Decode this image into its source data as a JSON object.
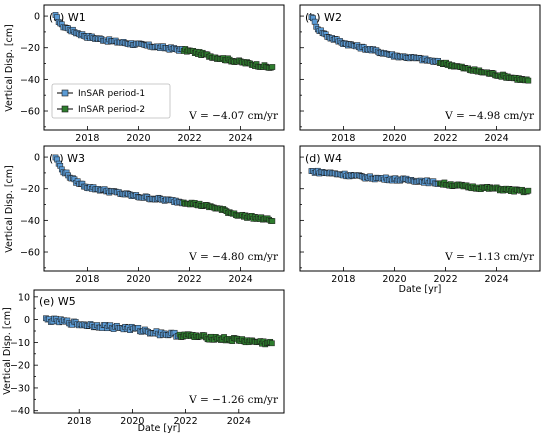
{
  "colors": {
    "period1": "#5b9bd5",
    "period2": "#2e7d2e",
    "line": "#000000",
    "point_edge": "#1a1a1a"
  },
  "legend": [
    {
      "label": "InSAR period-1",
      "series": "period1"
    },
    {
      "label": "InSAR period-2",
      "series": "period2"
    }
  ],
  "chart_data": [
    {
      "panel": "W1",
      "title": "(a) W1",
      "type": "scatter",
      "xlim": [
        2016.3,
        2025.7
      ],
      "ylim": [
        -72,
        7
      ],
      "xticks": [
        "2018",
        "2020",
        "2022",
        "2024"
      ],
      "yticks": [
        "0",
        "−20",
        "−40",
        "−60"
      ],
      "ylabel": "Vertical Disp. [cm]",
      "xlabel": "",
      "rate_text": "V = −4.07 cm/yr",
      "split_year": 2021.75,
      "keypoints": [
        [
          2016.75,
          0
        ],
        [
          2017.0,
          -6
        ],
        [
          2017.5,
          -10
        ],
        [
          2018.0,
          -13
        ],
        [
          2019.0,
          -16
        ],
        [
          2020.0,
          -18
        ],
        [
          2021.0,
          -20
        ],
        [
          2022.0,
          -22
        ],
        [
          2023.0,
          -26
        ],
        [
          2024.0,
          -29
        ],
        [
          2025.3,
          -33
        ]
      ],
      "legend": true
    },
    {
      "panel": "W2",
      "title": "(b) W2",
      "type": "scatter",
      "xlim": [
        2016.3,
        2025.7
      ],
      "ylim": [
        -72,
        7
      ],
      "xticks": [
        "2018",
        "2020",
        "2022",
        "2024"
      ],
      "yticks": [],
      "ylabel": "",
      "xlabel": "",
      "rate_text": "V = −4.98 cm/yr",
      "split_year": 2021.75,
      "keypoints": [
        [
          2016.75,
          0
        ],
        [
          2017.0,
          -8
        ],
        [
          2017.4,
          -13
        ],
        [
          2018.0,
          -17
        ],
        [
          2019.0,
          -21
        ],
        [
          2020.0,
          -25
        ],
        [
          2021.0,
          -27
        ],
        [
          2022.0,
          -30
        ],
        [
          2023.0,
          -34
        ],
        [
          2024.0,
          -37
        ],
        [
          2025.3,
          -41
        ]
      ],
      "legend": false
    },
    {
      "panel": "W3",
      "title": "(c) W3",
      "type": "scatter",
      "xlim": [
        2016.3,
        2025.7
      ],
      "ylim": [
        -72,
        7
      ],
      "xticks": [
        "2018",
        "2020",
        "2022",
        "2024"
      ],
      "yticks": [
        "0",
        "−20",
        "−40",
        "−60"
      ],
      "ylabel": "Vertical Disp. [cm]",
      "xlabel": "",
      "rate_text": "V = −4.80 cm/yr",
      "split_year": 2021.75,
      "keypoints": [
        [
          2016.75,
          0
        ],
        [
          2017.0,
          -8
        ],
        [
          2017.5,
          -15
        ],
        [
          2018.0,
          -19
        ],
        [
          2019.0,
          -22
        ],
        [
          2020.0,
          -25
        ],
        [
          2021.0,
          -27
        ],
        [
          2022.0,
          -29
        ],
        [
          2023.0,
          -32
        ],
        [
          2024.0,
          -37
        ],
        [
          2025.3,
          -40
        ]
      ],
      "legend": false
    },
    {
      "panel": "W4",
      "title": "(d) W4",
      "type": "scatter",
      "xlim": [
        2016.3,
        2025.7
      ],
      "ylim": [
        -72,
        7
      ],
      "xticks": [
        "2018",
        "2020",
        "2022",
        "2024"
      ],
      "yticks": [],
      "ylabel": "",
      "xlabel": "Date [yr]",
      "rate_text": "V = −1.13 cm/yr",
      "split_year": 2021.75,
      "keypoints": [
        [
          2016.75,
          -9
        ],
        [
          2018.0,
          -11
        ],
        [
          2019.0,
          -13
        ],
        [
          2020.0,
          -14
        ],
        [
          2021.0,
          -15
        ],
        [
          2022.0,
          -17
        ],
        [
          2023.0,
          -19
        ],
        [
          2024.0,
          -20
        ],
        [
          2025.3,
          -22
        ]
      ],
      "legend": false
    },
    {
      "panel": "W5",
      "title": "(e) W5",
      "type": "scatter",
      "xlim": [
        2016.3,
        2025.7
      ],
      "ylim": [
        -41,
        13
      ],
      "xticks": [
        "2018",
        "2020",
        "2022",
        "2024"
      ],
      "yticks": [
        "10",
        "0",
        "−10",
        "−20",
        "−30",
        "−40"
      ],
      "ylabel": "Vertical Disp. [cm]",
      "xlabel": "Date [yr]",
      "rate_text": "V = −1.26 cm/yr",
      "split_year": 2021.75,
      "keypoints": [
        [
          2016.75,
          0
        ],
        [
          2017.5,
          -1
        ],
        [
          2018.0,
          -2
        ],
        [
          2019.0,
          -3
        ],
        [
          2020.0,
          -4
        ],
        [
          2021.0,
          -6
        ],
        [
          2022.0,
          -7
        ],
        [
          2023.0,
          -8
        ],
        [
          2024.0,
          -9
        ],
        [
          2025.3,
          -10.5
        ]
      ],
      "legend": false
    }
  ]
}
